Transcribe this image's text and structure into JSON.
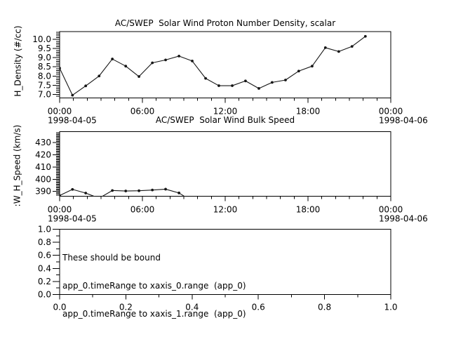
{
  "app": {
    "background": "#ffffff",
    "foreground": "#000000",
    "line_color": "#161616"
  },
  "chart_data": [
    {
      "type": "line",
      "title": "AC/SWEP  Solar Wind Proton Number Density, scalar",
      "ylabel": "H_Density (#/cc)",
      "xlim_hours": [
        0,
        24
      ],
      "ylim": [
        6.8,
        10.43
      ],
      "grid": false,
      "x_major": [
        {
          "hour": 0,
          "label": "00:00",
          "date": "1998-04-05"
        },
        {
          "hour": 6,
          "label": "06:00"
        },
        {
          "hour": 12,
          "label": "12:00"
        },
        {
          "hour": 18,
          "label": "18:00"
        },
        {
          "hour": 24,
          "label": "00:00",
          "date": "1998-04-06"
        }
      ],
      "x_minor_step_hours": 1,
      "y_major": [
        {
          "v": 7.0,
          "label": "7.0"
        },
        {
          "v": 7.5,
          "label": "7.5"
        },
        {
          "v": 8.0,
          "label": "8.0"
        },
        {
          "v": 8.5,
          "label": "8.5"
        },
        {
          "v": 9.0,
          "label": "9.0"
        },
        {
          "v": 9.5,
          "label": "9.5"
        },
        {
          "v": 10.0,
          "label": "10.0"
        }
      ],
      "y_minor_step": 0.1,
      "series": {
        "name": "H_Density",
        "x_hours": [
          0,
          0.93,
          1.89,
          2.86,
          3.82,
          4.79,
          5.75,
          6.72,
          7.68,
          8.65,
          9.61,
          10.58,
          11.54,
          12.51,
          13.47,
          14.44,
          15.4,
          16.37,
          17.33,
          18.3,
          19.26,
          20.23,
          21.19,
          22.16
        ],
        "values": [
          8.43,
          6.95,
          7.46,
          8.0,
          8.93,
          8.54,
          7.97,
          8.72,
          8.88,
          9.09,
          8.82,
          7.87,
          7.47,
          7.47,
          7.73,
          7.32,
          7.65,
          7.78,
          8.27,
          8.54,
          9.55,
          9.34,
          9.62,
          10.17
        ]
      }
    },
    {
      "type": "line",
      "title": "AC/SWEP  Solar Wind Bulk Speed",
      "ylabel": ":W_H_Speed (km/s)",
      "xlim_hours": [
        0,
        24
      ],
      "ylim": [
        386,
        439
      ],
      "grid": false,
      "x_major": [
        {
          "hour": 0,
          "label": "00:00",
          "date": "1998-04-05"
        },
        {
          "hour": 6,
          "label": "06:00"
        },
        {
          "hour": 12,
          "label": "12:00"
        },
        {
          "hour": 18,
          "label": "18:00"
        },
        {
          "hour": 24,
          "label": "00:00",
          "date": "1998-04-06"
        }
      ],
      "x_minor_step_hours": 1,
      "y_major": [
        {
          "v": 390,
          "label": "390"
        },
        {
          "v": 400,
          "label": "400"
        },
        {
          "v": 410,
          "label": "410"
        },
        {
          "v": 420,
          "label": "420"
        },
        {
          "v": 430,
          "label": "430"
        }
      ],
      "y_minor_step": 1,
      "series": {
        "name": "W_H_Speed",
        "x_hours": [
          0,
          0.93,
          1.89,
          2.86,
          3.82,
          4.79,
          5.75,
          6.72,
          7.68,
          8.65,
          9.61
        ],
        "values": [
          386.7,
          391.7,
          388.7,
          384.5,
          390.8,
          390.4,
          390.6,
          391.2,
          391.9,
          388.8,
          382.0
        ]
      }
    },
    {
      "type": "empty",
      "title": "",
      "ylabel": "",
      "xlim": [
        0,
        1
      ],
      "ylim": [
        0,
        1
      ],
      "grid": false,
      "x_major": [
        {
          "v": 0.0,
          "label": "0.0"
        },
        {
          "v": 0.2,
          "label": "0.2"
        },
        {
          "v": 0.4,
          "label": "0.4"
        },
        {
          "v": 0.6,
          "label": "0.6"
        },
        {
          "v": 0.8,
          "label": "0.8"
        },
        {
          "v": 1.0,
          "label": "1.0"
        }
      ],
      "x_minor_step": 0.1,
      "y_major": [
        {
          "v": 0.0,
          "label": "0.0"
        },
        {
          "v": 0.2,
          "label": "0.2"
        },
        {
          "v": 0.4,
          "label": "0.4"
        },
        {
          "v": 0.6,
          "label": "0.6"
        },
        {
          "v": 0.8,
          "label": "0.8"
        },
        {
          "v": 1.0,
          "label": "1.0"
        }
      ],
      "y_minor_step": 0.1,
      "annotation": {
        "lines": [
          "These should be bound",
          "app_0.timeRange to xaxis_0.range  (app_0)",
          "app_0.timeRange to xaxis_1.range  (app_0)"
        ]
      }
    }
  ]
}
